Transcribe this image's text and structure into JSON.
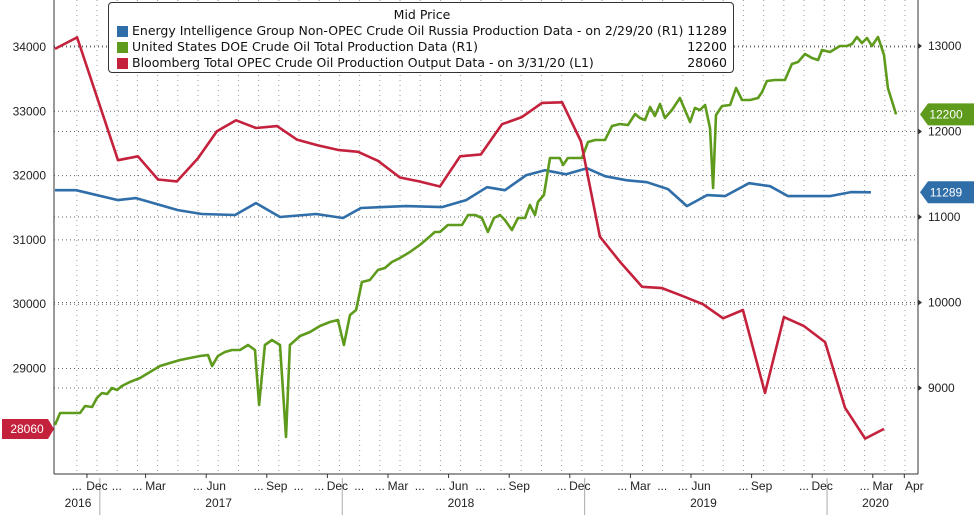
{
  "chart_data": {
    "type": "line",
    "title": "Mid Price",
    "x_unit": "decimal year",
    "xlim": [
      2016.785,
      2020.33
    ],
    "left_axis": {
      "ylim": [
        27200,
        34700
      ],
      "ticks": [
        29000,
        30000,
        31000,
        32000,
        33000,
        34000
      ]
    },
    "right_axis": {
      "ylim": [
        8260,
        13540
      ],
      "ticks": [
        9000,
        10000,
        11000,
        12000,
        13000
      ]
    },
    "grid": true,
    "legend_position": "top-center",
    "month_labels": [
      {
        "t": 2016.875,
        "text": "..."
      },
      {
        "t": 2016.958,
        "text": "Dec"
      },
      {
        "t": 2017.04,
        "text": "..."
      },
      {
        "t": 2017.125,
        "text": "..."
      },
      {
        "t": 2017.2,
        "text": "Mar"
      },
      {
        "t": 2017.375,
        "text": "..."
      },
      {
        "t": 2017.45,
        "text": "Jun"
      },
      {
        "t": 2017.625,
        "text": "..."
      },
      {
        "t": 2017.7,
        "text": "Sep"
      },
      {
        "t": 2017.79,
        "text": "..."
      },
      {
        "t": 2017.875,
        "text": "..."
      },
      {
        "t": 2017.95,
        "text": "Dec"
      },
      {
        "t": 2018.04,
        "text": "..."
      },
      {
        "t": 2018.125,
        "text": "..."
      },
      {
        "t": 2018.2,
        "text": "Mar"
      },
      {
        "t": 2018.29,
        "text": "..."
      },
      {
        "t": 2018.375,
        "text": "..."
      },
      {
        "t": 2018.45,
        "text": "Jun"
      },
      {
        "t": 2018.54,
        "text": "..."
      },
      {
        "t": 2018.625,
        "text": "..."
      },
      {
        "t": 2018.7,
        "text": "Sep"
      },
      {
        "t": 2018.875,
        "text": "..."
      },
      {
        "t": 2018.95,
        "text": "Dec"
      },
      {
        "t": 2019.125,
        "text": "..."
      },
      {
        "t": 2019.2,
        "text": "Mar"
      },
      {
        "t": 2019.29,
        "text": "..."
      },
      {
        "t": 2019.375,
        "text": "..."
      },
      {
        "t": 2019.45,
        "text": "Jun"
      },
      {
        "t": 2019.625,
        "text": "..."
      },
      {
        "t": 2019.7,
        "text": "Sep"
      },
      {
        "t": 2019.875,
        "text": "..."
      },
      {
        "t": 2019.95,
        "text": "Dec"
      },
      {
        "t": 2020.125,
        "text": "..."
      },
      {
        "t": 2020.2,
        "text": "Mar"
      },
      {
        "t": 2020.33,
        "text": "Apr"
      }
    ],
    "year_labels": [
      {
        "t": 2016.88,
        "text": "2016"
      },
      {
        "t": 2017.46,
        "text": "2017"
      },
      {
        "t": 2018.46,
        "text": "2018"
      },
      {
        "t": 2019.46,
        "text": "2019"
      },
      {
        "t": 2020.17,
        "text": "2020"
      }
    ],
    "year_separators": [
      2016.97,
      2017.97,
      2018.97,
      2019.97
    ],
    "series": [
      {
        "name": "Energy Intelligence Group Non-OPEC Crude Oil Russia Production Data -  on 2/29/20  (R1)",
        "axis": "right",
        "color": "#2f6ea8",
        "last_value": "11289",
        "points": [
          [
            2016.785,
            11314
          ],
          [
            2016.872,
            11314
          ],
          [
            2017.045,
            11198
          ],
          [
            2017.119,
            11221
          ],
          [
            2017.292,
            11081
          ],
          [
            2017.391,
            11035
          ],
          [
            2017.528,
            11023
          ],
          [
            2017.614,
            11163
          ],
          [
            2017.713,
            11000
          ],
          [
            2017.862,
            11035
          ],
          [
            2017.973,
            10988
          ],
          [
            2018.047,
            11105
          ],
          [
            2018.134,
            11116
          ],
          [
            2018.233,
            11128
          ],
          [
            2018.381,
            11116
          ],
          [
            2018.481,
            11198
          ],
          [
            2018.567,
            11349
          ],
          [
            2018.641,
            11314
          ],
          [
            2018.728,
            11488
          ],
          [
            2018.806,
            11547
          ],
          [
            2018.893,
            11500
          ],
          [
            2018.98,
            11570
          ],
          [
            2019.054,
            11477
          ],
          [
            2019.141,
            11430
          ],
          [
            2019.227,
            11407
          ],
          [
            2019.314,
            11326
          ],
          [
            2019.392,
            11128
          ],
          [
            2019.475,
            11256
          ],
          [
            2019.549,
            11244
          ],
          [
            2019.648,
            11395
          ],
          [
            2019.735,
            11360
          ],
          [
            2019.809,
            11244
          ],
          [
            2019.982,
            11244
          ],
          [
            2020.069,
            11291
          ],
          [
            2020.151,
            11289
          ]
        ]
      },
      {
        "name": "United States DOE Crude Oil Total Production Data  (R1)",
        "axis": "right",
        "color": "#5e9a1c",
        "last_value": "12200",
        "points": [
          [
            2016.785,
            8567
          ],
          [
            2016.806,
            8708
          ],
          [
            2016.867,
            8708
          ],
          [
            2016.888,
            8708
          ],
          [
            2016.909,
            8789
          ],
          [
            2016.938,
            8778
          ],
          [
            2016.958,
            8883
          ],
          [
            2016.979,
            8942
          ],
          [
            2017.0,
            8930
          ],
          [
            2017.02,
            9000
          ],
          [
            2017.041,
            8977
          ],
          [
            2017.061,
            9023
          ],
          [
            2017.094,
            9070
          ],
          [
            2017.136,
            9117
          ],
          [
            2017.177,
            9187
          ],
          [
            2017.218,
            9257
          ],
          [
            2017.259,
            9292
          ],
          [
            2017.301,
            9327
          ],
          [
            2017.342,
            9351
          ],
          [
            2017.383,
            9374
          ],
          [
            2017.416,
            9386
          ],
          [
            2017.433,
            9257
          ],
          [
            2017.457,
            9374
          ],
          [
            2017.486,
            9421
          ],
          [
            2017.515,
            9444
          ],
          [
            2017.548,
            9444
          ],
          [
            2017.581,
            9503
          ],
          [
            2017.61,
            9444
          ],
          [
            2017.627,
            8801
          ],
          [
            2017.651,
            9503
          ],
          [
            2017.68,
            9561
          ],
          [
            2017.713,
            9503
          ],
          [
            2017.738,
            8427
          ],
          [
            2017.754,
            9503
          ],
          [
            2017.796,
            9608
          ],
          [
            2017.837,
            9655
          ],
          [
            2017.878,
            9725
          ],
          [
            2017.919,
            9772
          ],
          [
            2017.952,
            9795
          ],
          [
            2017.977,
            9503
          ],
          [
            2018.002,
            9854
          ],
          [
            2018.027,
            9912
          ],
          [
            2018.051,
            10240
          ],
          [
            2018.084,
            10263
          ],
          [
            2018.117,
            10380
          ],
          [
            2018.146,
            10404
          ],
          [
            2018.175,
            10474
          ],
          [
            2018.208,
            10520
          ],
          [
            2018.249,
            10591
          ],
          [
            2018.29,
            10673
          ],
          [
            2018.324,
            10754
          ],
          [
            2018.352,
            10825
          ],
          [
            2018.373,
            10825
          ],
          [
            2018.406,
            10906
          ],
          [
            2018.435,
            10906
          ],
          [
            2018.464,
            10906
          ],
          [
            2018.489,
            11023
          ],
          [
            2018.518,
            11023
          ],
          [
            2018.546,
            10988
          ],
          [
            2018.571,
            10825
          ],
          [
            2018.596,
            10988
          ],
          [
            2018.621,
            11023
          ],
          [
            2018.641,
            10965
          ],
          [
            2018.67,
            10848
          ],
          [
            2018.695,
            10988
          ],
          [
            2018.724,
            10988
          ],
          [
            2018.744,
            11140
          ],
          [
            2018.765,
            11023
          ],
          [
            2018.777,
            11175
          ],
          [
            2018.802,
            11257
          ],
          [
            2018.827,
            11690
          ],
          [
            2018.848,
            11690
          ],
          [
            2018.868,
            11690
          ],
          [
            2018.881,
            11608
          ],
          [
            2018.901,
            11690
          ],
          [
            2018.93,
            11690
          ],
          [
            2018.959,
            11690
          ],
          [
            2018.984,
            11877
          ],
          [
            2019.013,
            11901
          ],
          [
            2019.054,
            11901
          ],
          [
            2019.083,
            12064
          ],
          [
            2019.116,
            12088
          ],
          [
            2019.149,
            12076
          ],
          [
            2019.178,
            12205
          ],
          [
            2019.198,
            12158
          ],
          [
            2019.219,
            12135
          ],
          [
            2019.24,
            12287
          ],
          [
            2019.26,
            12181
          ],
          [
            2019.281,
            12322
          ],
          [
            2019.301,
            12158
          ],
          [
            2019.33,
            12251
          ],
          [
            2019.363,
            12392
          ],
          [
            2019.384,
            12251
          ],
          [
            2019.405,
            12111
          ],
          [
            2019.425,
            12275
          ],
          [
            2019.446,
            12251
          ],
          [
            2019.467,
            12310
          ],
          [
            2019.487,
            12041
          ],
          [
            2019.5,
            11339
          ],
          [
            2019.512,
            12193
          ],
          [
            2019.537,
            12298
          ],
          [
            2019.57,
            12310
          ],
          [
            2019.595,
            12509
          ],
          [
            2019.619,
            12368
          ],
          [
            2019.652,
            12368
          ],
          [
            2019.685,
            12392
          ],
          [
            2019.702,
            12462
          ],
          [
            2019.722,
            12591
          ],
          [
            2019.755,
            12602
          ],
          [
            2019.796,
            12602
          ],
          [
            2019.825,
            12789
          ],
          [
            2019.85,
            12813
          ],
          [
            2019.879,
            12906
          ],
          [
            2019.908,
            12860
          ],
          [
            2019.933,
            12836
          ],
          [
            2019.949,
            12953
          ],
          [
            2019.982,
            12930
          ],
          [
            2020.023,
            13000
          ],
          [
            2020.052,
            13000
          ],
          [
            2020.073,
            13023
          ],
          [
            2020.093,
            13105
          ],
          [
            2020.114,
            13035
          ],
          [
            2020.135,
            13094
          ],
          [
            2020.155,
            13000
          ],
          [
            2020.18,
            13105
          ],
          [
            2020.205,
            12895
          ],
          [
            2020.221,
            12509
          ],
          [
            2020.255,
            12200
          ]
        ]
      },
      {
        "name": "Bloomberg Total OPEC Crude Oil Production Output Data -  on 3/31/20  (L1)",
        "axis": "left",
        "color": "#c4213c",
        "last_value": "28060",
        "points": [
          [
            2016.785,
            33970
          ],
          [
            2016.876,
            34150
          ],
          [
            2017.045,
            32240
          ],
          [
            2017.127,
            32300
          ],
          [
            2017.21,
            31940
          ],
          [
            2017.288,
            31910
          ],
          [
            2017.375,
            32270
          ],
          [
            2017.453,
            32690
          ],
          [
            2017.532,
            32860
          ],
          [
            2017.614,
            32740
          ],
          [
            2017.701,
            32770
          ],
          [
            2017.783,
            32560
          ],
          [
            2017.87,
            32470
          ],
          [
            2017.952,
            32400
          ],
          [
            2018.035,
            32370
          ],
          [
            2018.117,
            32230
          ],
          [
            2018.208,
            31970
          ],
          [
            2018.287,
            31910
          ],
          [
            2018.373,
            31830
          ],
          [
            2018.456,
            32300
          ],
          [
            2018.542,
            32330
          ],
          [
            2018.629,
            32800
          ],
          [
            2018.711,
            32910
          ],
          [
            2018.794,
            33130
          ],
          [
            2018.877,
            33140
          ],
          [
            2018.955,
            32530
          ],
          [
            2019.033,
            31050
          ],
          [
            2019.116,
            30660
          ],
          [
            2019.207,
            30270
          ],
          [
            2019.289,
            30250
          ],
          [
            2019.372,
            30130
          ],
          [
            2019.458,
            30000
          ],
          [
            2019.541,
            29780
          ],
          [
            2019.623,
            29910
          ],
          [
            2019.714,
            28620
          ],
          [
            2019.792,
            29800
          ],
          [
            2019.875,
            29660
          ],
          [
            2019.962,
            29410
          ],
          [
            2020.044,
            28390
          ],
          [
            2020.127,
            27910
          ],
          [
            2020.205,
            28060
          ]
        ]
      }
    ]
  }
}
